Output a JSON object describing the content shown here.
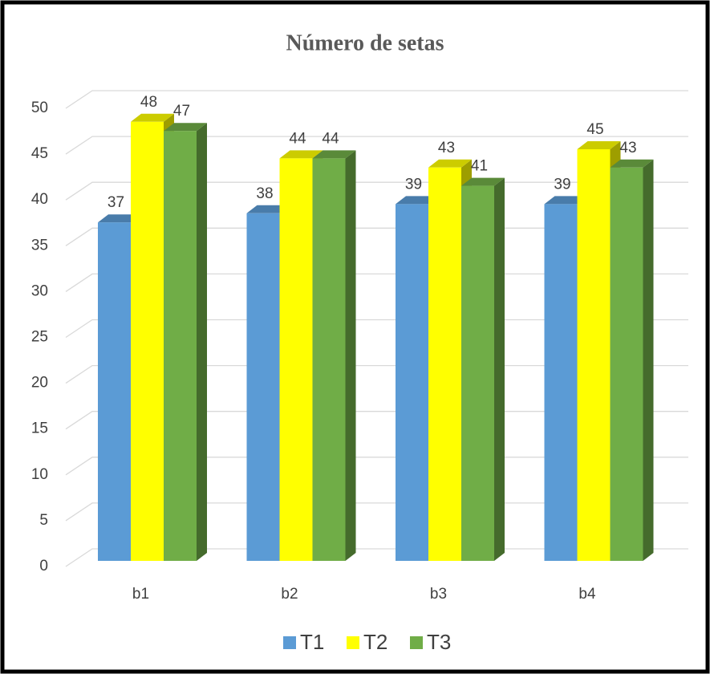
{
  "chart_data": {
    "type": "bar3d",
    "title": "Número de setas",
    "categories": [
      "b1",
      "b2",
      "b3",
      "b4"
    ],
    "series": [
      {
        "name": "T1",
        "color": "#5b9bd5",
        "values": [
          37,
          38,
          39,
          39
        ]
      },
      {
        "name": "T2",
        "color": "#ffff00",
        "values": [
          48,
          44,
          43,
          45
        ]
      },
      {
        "name": "T3",
        "color": "#70ad47",
        "values": [
          47,
          44,
          41,
          43
        ]
      }
    ],
    "ylim": [
      0,
      50
    ],
    "yticks": [
      0,
      5,
      10,
      15,
      20,
      25,
      30,
      35,
      40,
      45,
      50
    ],
    "grid": true,
    "legend": "bottom"
  }
}
